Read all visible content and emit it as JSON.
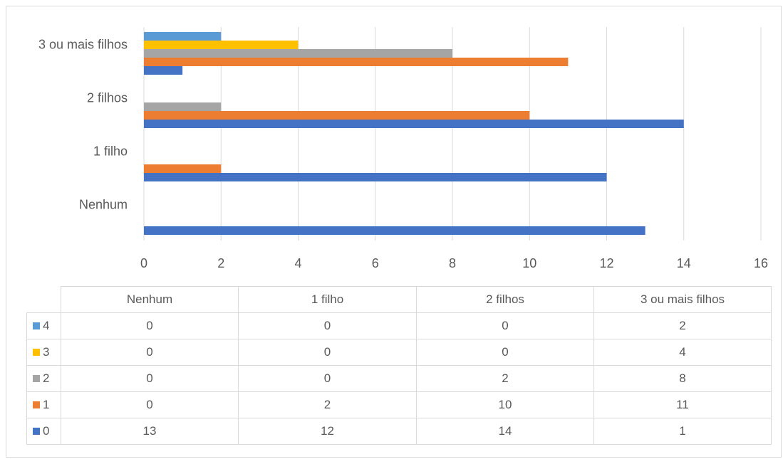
{
  "chart_data": {
    "type": "bar",
    "orientation": "horizontal",
    "categories": [
      "Nenhum",
      "1 filho",
      "2 filhos",
      "3 ou mais filhos"
    ],
    "series": [
      {
        "name": "0",
        "color": "#4472c4",
        "values": [
          13,
          12,
          14,
          1
        ]
      },
      {
        "name": "1",
        "color": "#ed7d31",
        "values": [
          0,
          2,
          10,
          11
        ]
      },
      {
        "name": "2",
        "color": "#a5a5a5",
        "values": [
          0,
          0,
          2,
          8
        ]
      },
      {
        "name": "3",
        "color": "#ffc000",
        "values": [
          0,
          0,
          0,
          4
        ]
      },
      {
        "name": "4",
        "color": "#5b9bd5",
        "values": [
          0,
          0,
          0,
          2
        ]
      }
    ],
    "xlim": [
      0,
      16
    ],
    "ticks": [
      "0",
      "2",
      "4",
      "6",
      "8",
      "10",
      "12",
      "14",
      "16"
    ],
    "grid": true,
    "legend": "data-table-below"
  }
}
